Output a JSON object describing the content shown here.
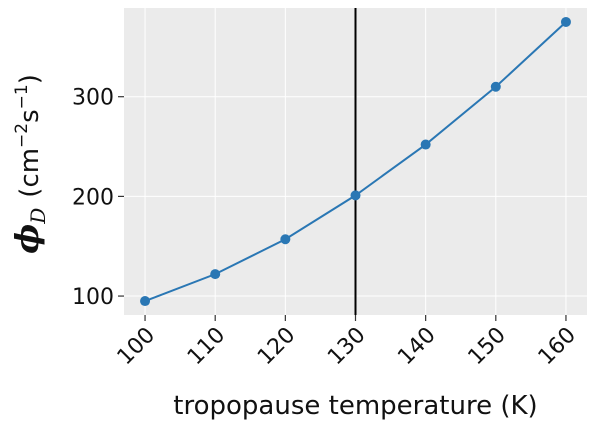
{
  "chart_data": {
    "type": "line",
    "x": [
      100,
      110,
      120,
      130,
      140,
      150,
      160
    ],
    "series": [
      {
        "values": [
          95,
          122,
          157,
          201,
          252,
          310,
          375
        ],
        "color": "#2a77b4",
        "marker": "circle"
      }
    ],
    "xlabel": "tropopause temperature (K)",
    "ylabel": {
      "symbol": "ϕ",
      "subscript": "D",
      "open": "(cm",
      "sup1": "−2",
      "mid": "s",
      "sup2": "−1",
      "close": ")"
    },
    "x_ticks": [
      "100",
      "110",
      "120",
      "130",
      "140",
      "150",
      "160"
    ],
    "y_ticks": [
      "100",
      "200",
      "300"
    ],
    "xlim": [
      97,
      163
    ],
    "ylim": [
      81,
      389
    ],
    "vertical_line": {
      "x": 130,
      "color": "#000000"
    },
    "background": "#ebebeb",
    "grid": true,
    "grid_color": "#ffffff"
  }
}
